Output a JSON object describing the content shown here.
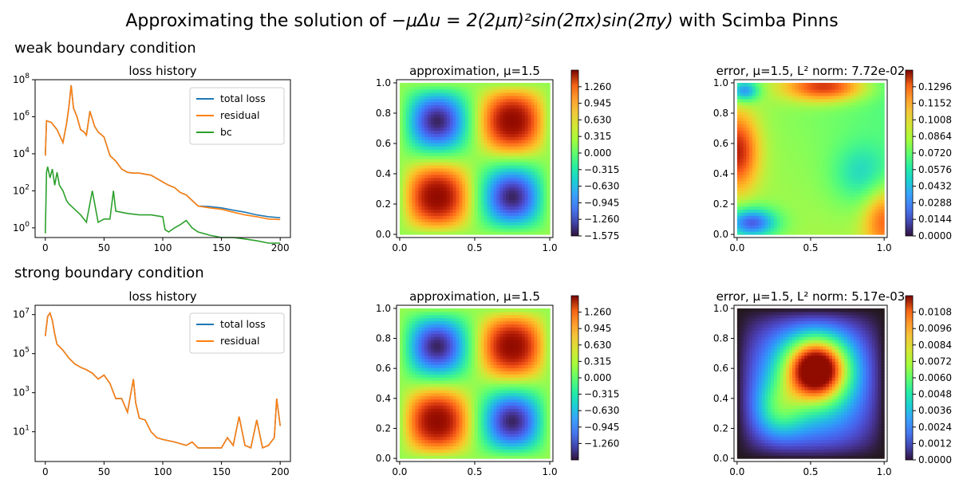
{
  "figure": {
    "title_prefix": "Approximating the solution of ",
    "title_math": "−μΔu = 2(2μπ)²sin(2πx)sin(2πy)",
    "title_suffix": " with Scimba Pinns",
    "rows": [
      {
        "label": "weak boundary condition"
      },
      {
        "label": "strong boundary condition"
      }
    ]
  },
  "chart_data": [
    {
      "id": "weak-loss",
      "type": "line",
      "title": "loss history",
      "y_scale": "log",
      "xlim": [
        0,
        200
      ],
      "ylim": [
        0.3,
        100000000
      ],
      "xticks": [
        0,
        50,
        100,
        150,
        200
      ],
      "ytick_labels": [
        "10^0",
        "10^2",
        "10^4",
        "10^6",
        "10^8"
      ],
      "legend_position": "top-right",
      "series": [
        {
          "name": "total loss",
          "color": "#1f77b4",
          "x": [
            0,
            1,
            5,
            10,
            15,
            18,
            20,
            22,
            24,
            27,
            30,
            33,
            35,
            38,
            42,
            45,
            50,
            55,
            60,
            65,
            70,
            75,
            80,
            90,
            100,
            105,
            110,
            115,
            120,
            125,
            130,
            140,
            150,
            160,
            170,
            180,
            190,
            200
          ],
          "y": [
            8000,
            600000,
            500000,
            200000,
            40000,
            400000,
            3000000,
            50000000,
            3000000,
            1000000,
            200000,
            150000,
            100000,
            2000000,
            300000,
            150000,
            80000,
            8000,
            4000,
            1500,
            1000,
            900,
            900,
            700,
            300,
            200,
            150,
            80,
            60,
            30,
            15,
            14,
            12,
            9,
            7,
            5,
            4,
            3.5
          ]
        },
        {
          "name": "residual",
          "color": "#ff7f0e",
          "x": [
            0,
            1,
            5,
            10,
            15,
            18,
            20,
            22,
            24,
            27,
            30,
            33,
            35,
            38,
            42,
            45,
            50,
            55,
            60,
            65,
            70,
            75,
            80,
            90,
            100,
            105,
            110,
            115,
            120,
            125,
            130,
            140,
            150,
            160,
            170,
            180,
            190,
            200
          ],
          "y": [
            8000,
            600000,
            500000,
            200000,
            40000,
            400000,
            3000000,
            50000000,
            3000000,
            1000000,
            200000,
            150000,
            100000,
            2000000,
            300000,
            150000,
            80000,
            8000,
            4000,
            1500,
            1000,
            900,
            900,
            700,
            300,
            200,
            150,
            80,
            60,
            30,
            15,
            12,
            10,
            7,
            5,
            4,
            3,
            2.8
          ]
        },
        {
          "name": "bc",
          "color": "#2ca02c",
          "x": [
            0,
            1,
            2,
            4,
            6,
            8,
            10,
            12,
            15,
            18,
            20,
            25,
            30,
            35,
            40,
            45,
            50,
            55,
            58,
            60,
            70,
            80,
            90,
            100,
            102,
            105,
            110,
            115,
            120,
            125,
            130,
            140,
            150,
            160,
            170,
            180,
            190,
            200
          ],
          "y": [
            0.5,
            1000,
            2000,
            500,
            1500,
            200,
            1000,
            200,
            100,
            30,
            20,
            10,
            5,
            2,
            100,
            2,
            3,
            3,
            100,
            8,
            6,
            5,
            5,
            4,
            0.8,
            0.6,
            1,
            1.5,
            2.5,
            1,
            0.6,
            0.4,
            0.3,
            0.3,
            0.25,
            0.2,
            0.15,
            0.15
          ]
        }
      ]
    },
    {
      "id": "weak-approx",
      "type": "heatmap",
      "title_prefix": "approximation, ",
      "title_mu": "μ=1.5",
      "xlim": [
        0,
        1
      ],
      "ylim": [
        0,
        1
      ],
      "xticks": [
        "0.0",
        "0.5",
        "1.0"
      ],
      "yticks": [
        "0.0",
        "0.2",
        "0.4",
        "0.6",
        "0.8",
        "1.0"
      ],
      "colormap": "turbo",
      "clim": [
        -1.575,
        1.575
      ],
      "colorbar_ticks": [
        "−1.575",
        "−1.260",
        "−0.945",
        "−0.630",
        "−0.315",
        "0.000",
        "0.315",
        "0.630",
        "0.945",
        "1.260"
      ],
      "field": "sin(2πx)·sin(2πy)·1.5"
    },
    {
      "id": "weak-error",
      "type": "heatmap",
      "title_prefix": "error, ",
      "title_mu": "μ=1.5",
      "title_norm_label": "L² norm: ",
      "title_norm": "7.72e-02",
      "xlim": [
        0,
        1
      ],
      "ylim": [
        0,
        1
      ],
      "xticks": [
        "0.0",
        "0.5",
        "1.0"
      ],
      "yticks": [
        "0.0",
        "0.2",
        "0.4",
        "0.6",
        "0.8",
        "1.0"
      ],
      "colormap": "turbo",
      "clim": [
        0,
        0.144
      ],
      "colorbar_ticks": [
        "0.0000",
        "0.0144",
        "0.0288",
        "0.0432",
        "0.0576",
        "0.0720",
        "0.0864",
        "0.1008",
        "0.1152",
        "0.1296"
      ],
      "field": "saddle pattern: high along top and left edges, low near bottom-left corner and top-left corner"
    },
    {
      "id": "strong-loss",
      "type": "line",
      "title": "loss history",
      "y_scale": "log",
      "xlim": [
        0,
        200
      ],
      "ylim": [
        0.3,
        30000000
      ],
      "xticks": [
        0,
        50,
        100,
        150,
        200
      ],
      "ytick_labels": [
        "10^1",
        "10^3",
        "10^5",
        "10^7"
      ],
      "legend_position": "top-right",
      "series": [
        {
          "name": "total loss",
          "color": "#1f77b4",
          "x": [
            0,
            2,
            4,
            6,
            8,
            10,
            15,
            20,
            25,
            30,
            35,
            40,
            45,
            50,
            55,
            60,
            65,
            70,
            75,
            77,
            80,
            85,
            90,
            95,
            100,
            110,
            120,
            125,
            130,
            140,
            150,
            155,
            160,
            165,
            170,
            175,
            180,
            185,
            190,
            195,
            197,
            200
          ],
          "y": [
            800000,
            8000000,
            12000000,
            5000000,
            1000000,
            300000,
            150000,
            60000,
            30000,
            20000,
            15000,
            10000,
            5000,
            8000,
            3000,
            500,
            500,
            100,
            5000,
            300,
            50,
            40,
            10,
            5,
            4,
            3,
            2,
            3,
            1.5,
            1.5,
            1.5,
            5,
            2,
            60,
            2,
            1.5,
            40,
            1.5,
            2,
            5,
            500,
            20
          ]
        },
        {
          "name": "residual",
          "color": "#ff7f0e",
          "x": [
            0,
            2,
            4,
            6,
            8,
            10,
            15,
            20,
            25,
            30,
            35,
            40,
            45,
            50,
            55,
            60,
            65,
            70,
            75,
            77,
            80,
            85,
            90,
            95,
            100,
            110,
            120,
            125,
            130,
            140,
            150,
            155,
            160,
            165,
            170,
            175,
            180,
            185,
            190,
            195,
            197,
            200
          ],
          "y": [
            800000,
            8000000,
            12000000,
            5000000,
            1000000,
            300000,
            150000,
            60000,
            30000,
            20000,
            15000,
            10000,
            5000,
            8000,
            3000,
            500,
            500,
            100,
            5000,
            300,
            50,
            40,
            10,
            5,
            4,
            3,
            2,
            3,
            1.5,
            1.5,
            1.5,
            5,
            2,
            60,
            2,
            1.5,
            40,
            1.5,
            2,
            5,
            500,
            20
          ]
        }
      ]
    },
    {
      "id": "strong-approx",
      "type": "heatmap",
      "title_prefix": "approximation, ",
      "title_mu": "μ=1.5",
      "xlim": [
        0,
        1
      ],
      "ylim": [
        0,
        1
      ],
      "xticks": [
        "0.0",
        "0.5",
        "1.0"
      ],
      "yticks": [
        "0.0",
        "0.2",
        "0.4",
        "0.6",
        "0.8",
        "1.0"
      ],
      "colormap": "turbo",
      "clim": [
        -1.575,
        1.575
      ],
      "colorbar_ticks": [
        "−1.260",
        "−0.945",
        "−0.630",
        "−0.315",
        "0.000",
        "0.315",
        "0.630",
        "0.945",
        "1.260"
      ],
      "field": "sin(2πx)·sin(2πy)·1.5"
    },
    {
      "id": "strong-error",
      "type": "heatmap",
      "title_prefix": "error, ",
      "title_mu": "μ=1.5",
      "title_norm_label": "L² norm: ",
      "title_norm": "5.17e-03",
      "xlim": [
        0,
        1
      ],
      "ylim": [
        0,
        1
      ],
      "xticks": [
        "0.0",
        "0.5",
        "1.0"
      ],
      "yticks": [
        "0.0",
        "0.2",
        "0.4",
        "0.6",
        "0.8",
        "1.0"
      ],
      "colormap": "turbo",
      "clim": [
        0,
        0.012
      ],
      "colorbar_ticks": [
        "0.0000",
        "0.0012",
        "0.0024",
        "0.0036",
        "0.0048",
        "0.0060",
        "0.0072",
        "0.0084",
        "0.0096",
        "0.0108"
      ],
      "field": "zero on boundary, peak near (0.55, 0.62)"
    }
  ]
}
